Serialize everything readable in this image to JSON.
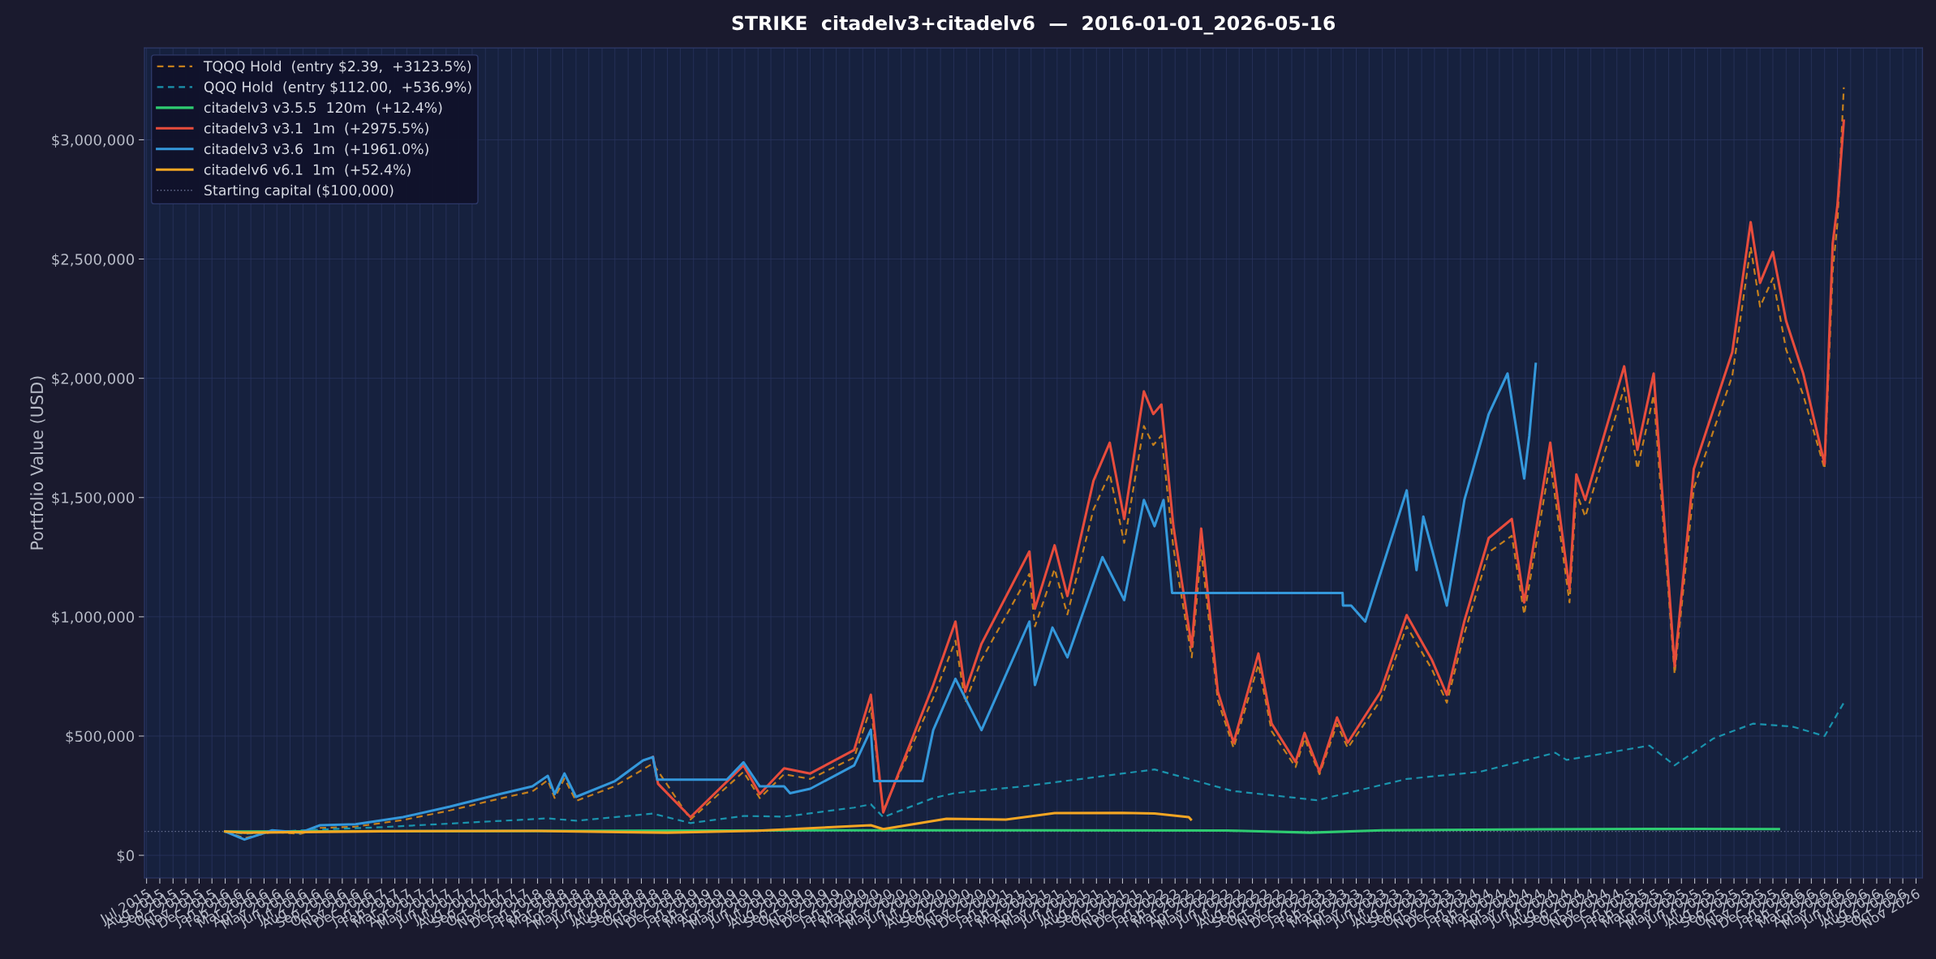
{
  "chart_data": {
    "type": "line",
    "title": "STRIKE  citadelv3+citadelv6  —  2016-01-01_2026-05-16",
    "ylabel": "Portfolio Value (USD)",
    "xlim": [
      "2015-06-26",
      "2026-11-16"
    ],
    "ylim": [
      -95000,
      3385000
    ],
    "yticks": [
      {
        "value": 0,
        "label": "$0"
      },
      {
        "value": 500000,
        "label": "$500,000"
      },
      {
        "value": 1000000,
        "label": "$1,000,000"
      },
      {
        "value": 1500000,
        "label": "$1,500,000"
      },
      {
        "value": 2000000,
        "label": "$2,000,000"
      },
      {
        "value": 2500000,
        "label": "$2,500,000"
      },
      {
        "value": 3000000,
        "label": "$3,000,000"
      }
    ],
    "xticks": [
      {
        "value": "2015-07-01",
        "label": "Jul 2015"
      },
      {
        "value": "2015-08-01",
        "label": "Aug 2015"
      },
      {
        "value": "2015-09-01",
        "label": "Sep 2015"
      },
      {
        "value": "2015-10-01",
        "label": "Oct 2015"
      },
      {
        "value": "2015-11-01",
        "label": "Nov 2015"
      },
      {
        "value": "2015-12-01",
        "label": "Dec 2015"
      },
      {
        "value": "2016-01-01",
        "label": "Jan 2016"
      },
      {
        "value": "2016-02-01",
        "label": "Feb 2016"
      },
      {
        "value": "2016-03-01",
        "label": "Mar 2016"
      },
      {
        "value": "2016-04-01",
        "label": "Apr 2016"
      },
      {
        "value": "2016-05-01",
        "label": "May 2016"
      },
      {
        "value": "2016-06-01",
        "label": "Jun 2016"
      },
      {
        "value": "2016-07-01",
        "label": "Jul 2016"
      },
      {
        "value": "2016-08-01",
        "label": "Aug 2016"
      },
      {
        "value": "2016-09-01",
        "label": "Sep 2016"
      },
      {
        "value": "2016-10-01",
        "label": "Oct 2016"
      },
      {
        "value": "2016-11-01",
        "label": "Nov 2016"
      },
      {
        "value": "2016-12-01",
        "label": "Dec 2016"
      },
      {
        "value": "2017-01-01",
        "label": "Jan 2017"
      },
      {
        "value": "2017-02-01",
        "label": "Feb 2017"
      },
      {
        "value": "2017-03-01",
        "label": "Mar 2017"
      },
      {
        "value": "2017-04-01",
        "label": "Apr 2017"
      },
      {
        "value": "2017-05-01",
        "label": "May 2017"
      },
      {
        "value": "2017-06-01",
        "label": "Jun 2017"
      },
      {
        "value": "2017-07-01",
        "label": "Jul 2017"
      },
      {
        "value": "2017-08-01",
        "label": "Aug 2017"
      },
      {
        "value": "2017-09-01",
        "label": "Sep 2017"
      },
      {
        "value": "2017-10-01",
        "label": "Oct 2017"
      },
      {
        "value": "2017-11-01",
        "label": "Nov 2017"
      },
      {
        "value": "2017-12-01",
        "label": "Dec 2017"
      },
      {
        "value": "2018-01-01",
        "label": "Jan 2018"
      },
      {
        "value": "2018-02-01",
        "label": "Feb 2018"
      },
      {
        "value": "2018-03-01",
        "label": "Mar 2018"
      },
      {
        "value": "2018-04-01",
        "label": "Apr 2018"
      },
      {
        "value": "2018-05-01",
        "label": "May 2018"
      },
      {
        "value": "2018-06-01",
        "label": "Jun 2018"
      },
      {
        "value": "2018-07-01",
        "label": "Jul 2018"
      },
      {
        "value": "2018-08-01",
        "label": "Aug 2018"
      },
      {
        "value": "2018-09-01",
        "label": "Sep 2018"
      },
      {
        "value": "2018-10-01",
        "label": "Oct 2018"
      },
      {
        "value": "2018-11-01",
        "label": "Nov 2018"
      },
      {
        "value": "2018-12-01",
        "label": "Dec 2018"
      },
      {
        "value": "2019-01-01",
        "label": "Jan 2019"
      },
      {
        "value": "2019-02-01",
        "label": "Feb 2019"
      },
      {
        "value": "2019-03-01",
        "label": "Mar 2019"
      },
      {
        "value": "2019-04-01",
        "label": "Apr 2019"
      },
      {
        "value": "2019-05-01",
        "label": "May 2019"
      },
      {
        "value": "2019-06-01",
        "label": "Jun 2019"
      },
      {
        "value": "2019-07-01",
        "label": "Jul 2019"
      },
      {
        "value": "2019-08-01",
        "label": "Aug 2019"
      },
      {
        "value": "2019-09-01",
        "label": "Sep 2019"
      },
      {
        "value": "2019-10-01",
        "label": "Oct 2019"
      },
      {
        "value": "2019-11-01",
        "label": "Nov 2019"
      },
      {
        "value": "2019-12-01",
        "label": "Dec 2019"
      },
      {
        "value": "2020-01-01",
        "label": "Jan 2020"
      },
      {
        "value": "2020-02-01",
        "label": "Feb 2020"
      },
      {
        "value": "2020-03-01",
        "label": "Mar 2020"
      },
      {
        "value": "2020-04-01",
        "label": "Apr 2020"
      },
      {
        "value": "2020-05-01",
        "label": "May 2020"
      },
      {
        "value": "2020-06-01",
        "label": "Jun 2020"
      },
      {
        "value": "2020-07-01",
        "label": "Jul 2020"
      },
      {
        "value": "2020-08-01",
        "label": "Aug 2020"
      },
      {
        "value": "2020-09-01",
        "label": "Sep 2020"
      },
      {
        "value": "2020-10-01",
        "label": "Oct 2020"
      },
      {
        "value": "2020-11-01",
        "label": "Nov 2020"
      },
      {
        "value": "2020-12-01",
        "label": "Dec 2020"
      },
      {
        "value": "2021-01-01",
        "label": "Jan 2021"
      },
      {
        "value": "2021-02-01",
        "label": "Feb 2021"
      },
      {
        "value": "2021-03-01",
        "label": "Mar 2021"
      },
      {
        "value": "2021-04-01",
        "label": "Apr 2021"
      },
      {
        "value": "2021-05-01",
        "label": "May 2021"
      },
      {
        "value": "2021-06-01",
        "label": "Jun 2021"
      },
      {
        "value": "2021-07-01",
        "label": "Jul 2021"
      },
      {
        "value": "2021-08-01",
        "label": "Aug 2021"
      },
      {
        "value": "2021-09-01",
        "label": "Sep 2021"
      },
      {
        "value": "2021-10-01",
        "label": "Oct 2021"
      },
      {
        "value": "2021-11-01",
        "label": "Nov 2021"
      },
      {
        "value": "2021-12-01",
        "label": "Dec 2021"
      },
      {
        "value": "2022-01-01",
        "label": "Jan 2022"
      },
      {
        "value": "2022-02-01",
        "label": "Feb 2022"
      },
      {
        "value": "2022-03-01",
        "label": "Mar 2022"
      },
      {
        "value": "2022-04-01",
        "label": "Apr 2022"
      },
      {
        "value": "2022-05-01",
        "label": "May 2022"
      },
      {
        "value": "2022-06-01",
        "label": "Jun 2022"
      },
      {
        "value": "2022-07-01",
        "label": "Jul 2022"
      },
      {
        "value": "2022-08-01",
        "label": "Aug 2022"
      },
      {
        "value": "2022-09-01",
        "label": "Sep 2022"
      },
      {
        "value": "2022-10-01",
        "label": "Oct 2022"
      },
      {
        "value": "2022-11-01",
        "label": "Nov 2022"
      },
      {
        "value": "2022-12-01",
        "label": "Dec 2022"
      },
      {
        "value": "2023-01-01",
        "label": "Jan 2023"
      },
      {
        "value": "2023-02-01",
        "label": "Feb 2023"
      },
      {
        "value": "2023-03-01",
        "label": "Mar 2023"
      },
      {
        "value": "2023-04-01",
        "label": "Apr 2023"
      },
      {
        "value": "2023-05-01",
        "label": "May 2023"
      },
      {
        "value": "2023-06-01",
        "label": "Jun 2023"
      },
      {
        "value": "2023-07-01",
        "label": "Jul 2023"
      },
      {
        "value": "2023-08-01",
        "label": "Aug 2023"
      },
      {
        "value": "2023-09-01",
        "label": "Sep 2023"
      },
      {
        "value": "2023-10-01",
        "label": "Oct 2023"
      },
      {
        "value": "2023-11-01",
        "label": "Nov 2023"
      },
      {
        "value": "2023-12-01",
        "label": "Dec 2023"
      },
      {
        "value": "2024-01-01",
        "label": "Jan 2024"
      },
      {
        "value": "2024-02-01",
        "label": "Feb 2024"
      },
      {
        "value": "2024-03-01",
        "label": "Mar 2024"
      },
      {
        "value": "2024-04-01",
        "label": "Apr 2024"
      },
      {
        "value": "2024-05-01",
        "label": "May 2024"
      },
      {
        "value": "2024-06-01",
        "label": "Jun 2024"
      },
      {
        "value": "2024-07-01",
        "label": "Jul 2024"
      },
      {
        "value": "2024-08-01",
        "label": "Aug 2024"
      },
      {
        "value": "2024-09-01",
        "label": "Sep 2024"
      },
      {
        "value": "2024-10-01",
        "label": "Oct 2024"
      },
      {
        "value": "2024-11-01",
        "label": "Nov 2024"
      },
      {
        "value": "2024-12-01",
        "label": "Dec 2024"
      },
      {
        "value": "2025-01-01",
        "label": "Jan 2025"
      },
      {
        "value": "2025-02-01",
        "label": "Feb 2025"
      },
      {
        "value": "2025-03-01",
        "label": "Mar 2025"
      },
      {
        "value": "2025-04-01",
        "label": "Apr 2025"
      },
      {
        "value": "2025-05-01",
        "label": "May 2025"
      },
      {
        "value": "2025-06-01",
        "label": "Jun 2025"
      },
      {
        "value": "2025-07-01",
        "label": "Jul 2025"
      },
      {
        "value": "2025-08-01",
        "label": "Aug 2025"
      },
      {
        "value": "2025-09-01",
        "label": "Sep 2025"
      },
      {
        "value": "2025-10-01",
        "label": "Oct 2025"
      },
      {
        "value": "2025-11-01",
        "label": "Nov 2025"
      },
      {
        "value": "2025-12-01",
        "label": "Dec 2025"
      },
      {
        "value": "2026-01-01",
        "label": "Jan 2026"
      },
      {
        "value": "2026-02-01",
        "label": "Feb 2026"
      },
      {
        "value": "2026-03-01",
        "label": "Mar 2026"
      },
      {
        "value": "2026-04-01",
        "label": "Apr 2026"
      },
      {
        "value": "2026-05-01",
        "label": "May 2026"
      },
      {
        "value": "2026-06-01",
        "label": "Jun 2026"
      },
      {
        "value": "2026-07-01",
        "label": "Jul 2026"
      },
      {
        "value": "2026-08-01",
        "label": "Aug 2026"
      },
      {
        "value": "2026-09-01",
        "label": "Sep 2026"
      },
      {
        "value": "2026-10-01",
        "label": "Oct 2026"
      },
      {
        "value": "2026-11-01",
        "label": "Nov 2026"
      }
    ],
    "grid": true,
    "legend": "top left",
    "series": [
      {
        "name": "TQQQ Hold  (entry $2.39,  +3123.5%)",
        "color": "#c47f1c",
        "line_style": "dashed",
        "x": [
          "2016-01-01",
          "2016-02-15",
          "2016-04-20",
          "2016-06-25",
          "2016-08-10",
          "2016-11-01",
          "2017-02-20",
          "2017-06-10",
          "2017-10-05",
          "2017-12-20",
          "2018-01-25",
          "2018-02-10",
          "2018-03-05",
          "2018-04-01",
          "2018-07-01",
          "2018-09-28",
          "2018-12-25",
          "2019-04-28",
          "2019-06-05",
          "2019-08-01",
          "2019-10-01",
          "2020-01-12",
          "2020-02-20",
          "2020-03-20",
          "2020-07-15",
          "2020-09-05",
          "2020-09-28",
          "2020-11-05",
          "2021-02-25",
          "2021-03-10",
          "2021-04-25",
          "2021-05-25",
          "2021-07-25",
          "2021-09-01",
          "2021-10-05",
          "2021-11-20",
          "2021-12-12",
          "2021-12-31",
          "2022-01-28",
          "2022-03-12",
          "2022-04-03",
          "2022-05-12",
          "2022-06-18",
          "2022-08-15",
          "2022-09-15",
          "2022-11-10",
          "2022-12-01",
          "2023-01-05",
          "2023-02-15",
          "2023-03-12",
          "2023-05-28",
          "2023-07-28",
          "2023-09-25",
          "2023-10-30",
          "2023-12-10",
          "2024-02-05",
          "2024-03-30",
          "2024-04-28",
          "2024-06-28",
          "2024-08-12",
          "2024-08-28",
          "2024-09-18",
          "2024-12-18",
          "2025-01-18",
          "2025-02-25",
          "2025-04-15",
          "2025-05-30",
          "2025-08-28",
          "2025-10-10",
          "2025-11-01",
          "2025-12-01",
          "2026-01-01",
          "2026-02-10",
          "2026-04-01",
          "2026-04-20",
          "2026-05-01",
          "2026-05-16"
        ],
        "values": [
          100000,
          72000,
          98000,
          90000,
          115000,
          120000,
          148000,
          188000,
          238000,
          268000,
          315000,
          240000,
          322000,
          228000,
          290000,
          385000,
          150000,
          350000,
          240000,
          340000,
          320000,
          410000,
          620000,
          190000,
          660000,
          900000,
          640000,
          820000,
          1180000,
          960000,
          1200000,
          1010000,
          1450000,
          1600000,
          1310000,
          1800000,
          1720000,
          1760000,
          1290000,
          830000,
          1280000,
          650000,
          450000,
          800000,
          520000,
          370000,
          490000,
          340000,
          550000,
          450000,
          650000,
          960000,
          780000,
          640000,
          930000,
          1270000,
          1340000,
          1010000,
          1650000,
          1060000,
          1520000,
          1420000,
          1960000,
          1620000,
          1930000,
          760000,
          1540000,
          2010000,
          2550000,
          2300000,
          2420000,
          2120000,
          1930000,
          1620000,
          2450000,
          2650000,
          3220000
        ]
      },
      {
        "name": "QQQ Hold  (entry $112.00,  +536.9%)",
        "color": "#1a93ad",
        "line_style": "dashed",
        "x": [
          "2016-01-01",
          "2016-02-15",
          "2016-07-01",
          "2017-01-01",
          "2017-07-01",
          "2018-01-25",
          "2018-04-01",
          "2018-09-28",
          "2018-12-25",
          "2019-04-28",
          "2019-08-01",
          "2020-01-12",
          "2020-02-20",
          "2020-03-20",
          "2020-07-15",
          "2020-09-01",
          "2021-02-15",
          "2021-12-15",
          "2022-06-15",
          "2022-12-30",
          "2023-07-28",
          "2024-01-15",
          "2024-07-10",
          "2024-08-05",
          "2025-02-15",
          "2025-04-15",
          "2025-07-15",
          "2025-10-15",
          "2026-01-15",
          "2026-04-01",
          "2026-05-16"
        ],
        "values": [
          100000,
          90000,
          105000,
          118000,
          135000,
          155000,
          145000,
          175000,
          135000,
          165000,
          162000,
          200000,
          214000,
          160000,
          240000,
          260000,
          290000,
          360000,
          270000,
          231000,
          320000,
          350000,
          430000,
          400000,
          460000,
          377000,
          490000,
          552000,
          540000,
          500000,
          640000
        ]
      },
      {
        "name": "citadelv3 v3.5.5  120m  (+12.4%)",
        "color": "#2ecc71",
        "line_style": "solid",
        "x": [
          "2016-01-01",
          "2018-01-01",
          "2020-01-01",
          "2022-06-01",
          "2022-12-15",
          "2023-06-01",
          "2024-06-01",
          "2025-06-01",
          "2025-12-15"
        ],
        "values": [
          100000,
          102000,
          105000,
          104000,
          95000,
          105000,
          109000,
          111000,
          110000
        ]
      },
      {
        "name": "citadelv3 v3.1  1m  (+2975.5%)",
        "color": "#e74c3c",
        "line_style": "solid",
        "x": [
          "2018-09-28",
          "2018-10-10",
          "2018-12-25",
          "2019-04-28",
          "2019-06-05",
          "2019-08-01",
          "2019-10-01",
          "2020-01-12",
          "2020-02-20",
          "2020-03-20",
          "2020-07-15",
          "2020-09-05",
          "2020-09-28",
          "2020-11-05",
          "2021-02-25",
          "2021-03-10",
          "2021-04-25",
          "2021-05-25",
          "2021-07-25",
          "2021-09-01",
          "2021-10-05",
          "2021-11-20",
          "2021-12-12",
          "2021-12-31",
          "2022-01-28",
          "2022-03-12",
          "2022-04-03",
          "2022-05-12",
          "2022-06-18",
          "2022-08-15",
          "2022-09-15",
          "2022-11-10",
          "2022-12-01",
          "2023-01-05",
          "2023-02-15",
          "2023-03-12",
          "2023-05-28",
          "2023-07-28",
          "2023-09-25",
          "2023-10-30",
          "2023-12-10",
          "2024-02-05",
          "2024-03-30",
          "2024-04-28",
          "2024-06-28",
          "2024-08-12",
          "2024-08-28",
          "2024-09-18",
          "2024-12-18",
          "2025-01-18",
          "2025-02-25",
          "2025-04-15",
          "2025-05-30",
          "2025-08-28",
          "2025-10-10",
          "2025-11-01",
          "2025-12-01",
          "2026-01-01",
          "2026-02-10",
          "2026-04-01",
          "2026-04-20",
          "2026-05-01",
          "2026-05-16"
        ],
        "values": [
          412000,
          300000,
          160000,
          377000,
          257000,
          365000,
          343000,
          442000,
          673000,
          180000,
          714000,
          980000,
          686000,
          887000,
          1274000,
          1034000,
          1300000,
          1087000,
          1570000,
          1730000,
          1410000,
          1945000,
          1850000,
          1890000,
          1380000,
          873000,
          1370000,
          686000,
          472000,
          846000,
          552000,
          391000,
          513000,
          350000,
          578000,
          472000,
          686000,
          1007000,
          819000,
          673000,
          982000,
          1330000,
          1410000,
          1060000,
          1730000,
          1115000,
          1597000,
          1490000,
          2050000,
          1700000,
          2020000,
          793000,
          1620000,
          2110000,
          2655000,
          2400000,
          2530000,
          2240000,
          2020000,
          1640000,
          2565000,
          2725000,
          3080000
        ]
      },
      {
        "name": "citadelv3 v3.6  1m  (+1961.0%)",
        "color": "#3498db",
        "line_style": "solid",
        "x": [
          "2016-01-01",
          "2016-02-15",
          "2016-04-20",
          "2016-06-25",
          "2016-08-10",
          "2016-11-01",
          "2017-02-20",
          "2017-06-10",
          "2017-10-05",
          "2017-12-20",
          "2018-01-25",
          "2018-02-10",
          "2018-03-05",
          "2018-04-01",
          "2018-07-01",
          "2018-09-05",
          "2018-09-28",
          "2018-10-08",
          "2019-03-20",
          "2019-04-28",
          "2019-06-05",
          "2019-08-01",
          "2019-08-15",
          "2019-10-01",
          "2020-01-12",
          "2020-02-20",
          "2020-02-28",
          "2020-06-20",
          "2020-07-15",
          "2020-09-05",
          "2020-11-05",
          "2021-02-25",
          "2021-03-10",
          "2021-04-20",
          "2021-05-25",
          "2021-08-15",
          "2021-10-05",
          "2021-11-20",
          "2021-12-15",
          "2022-01-05",
          "2022-01-25",
          "2023-02-28",
          "2023-03-01",
          "2023-03-20",
          "2023-04-22",
          "2023-07-28",
          "2023-08-20",
          "2023-09-05",
          "2023-10-30",
          "2023-12-10",
          "2024-02-05",
          "2024-03-20",
          "2024-04-28",
          "2024-05-10",
          "2024-05-25"
        ],
        "values": [
          100000,
          66000,
          105000,
          95000,
          126000,
          130000,
          160000,
          204000,
          257000,
          289000,
          333000,
          257000,
          343000,
          245000,
          311000,
          398000,
          412000,
          317000,
          317000,
          390000,
          289000,
          289000,
          260000,
          279000,
          377000,
          527000,
          311000,
          311000,
          525000,
          740000,
          525000,
          980000,
          714000,
          955000,
          830000,
          1250000,
          1070000,
          1490000,
          1380000,
          1490000,
          1100000,
          1100000,
          1047000,
          1047000,
          980000,
          1530000,
          1196000,
          1420000,
          1047000,
          1490000,
          1850000,
          2020000,
          1580000,
          1760000,
          2060000
        ]
      },
      {
        "name": "citadelv6 v6.1  1m  (+52.4%)",
        "color": "#f5a623",
        "line_style": "solid",
        "x": [
          "2016-01-01",
          "2016-02-15",
          "2017-01-01",
          "2018-01-01",
          "2018-11-01",
          "2019-06-01",
          "2020-02-20",
          "2020-03-20",
          "2020-08-15",
          "2021-01-01",
          "2021-04-25",
          "2021-10-01",
          "2021-12-15",
          "2022-03-05",
          "2022-03-10"
        ],
        "values": [
          100000,
          95000,
          101000,
          102000,
          95000,
          103000,
          126000,
          110000,
          153000,
          150000,
          177000,
          178000,
          175000,
          160000,
          150000
        ]
      }
    ],
    "ref_lines": [
      {
        "axis": "y",
        "value": 100000,
        "label": "Starting capital ($100,000)",
        "color": "#6b7394",
        "line_style": "dotted"
      }
    ]
  }
}
